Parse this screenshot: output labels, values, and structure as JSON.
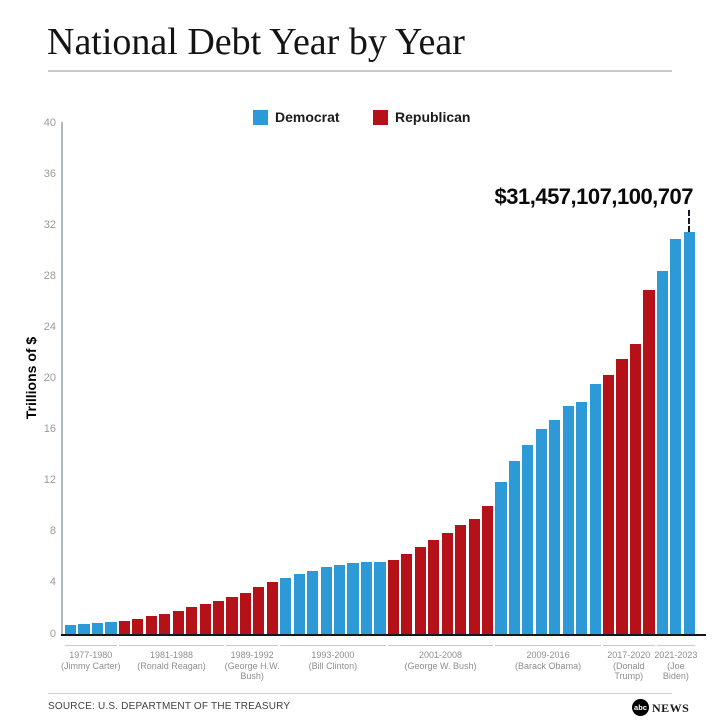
{
  "header": {
    "title": "National Debt Year by Year"
  },
  "legend": {
    "items": [
      {
        "label": "Democrat",
        "color": "#2d9ad7"
      },
      {
        "label": "Republican",
        "color": "#b41218"
      }
    ]
  },
  "annotation": {
    "debt_label": "$31,457,107,100,707"
  },
  "chart_data": {
    "type": "bar",
    "title": "National Debt Year by Year",
    "xlabel": "",
    "ylabel": "Trillions of $",
    "unit": "trillions of US dollars",
    "ylim": [
      0,
      40
    ],
    "yticks": [
      0,
      4,
      8,
      12,
      16,
      20,
      24,
      28,
      32,
      36,
      40
    ],
    "grid": false,
    "legend_position": "top-center",
    "series_colors": {
      "Democrat": "#2d9ad7",
      "Republican": "#b41218"
    },
    "annotation": {
      "text": "$31,457,107,100,707",
      "target_year": 2023
    },
    "groups": [
      {
        "years_label": "1977-1980",
        "president_label": "(Jimmy Carter)",
        "party": "Democrat",
        "years": [
          1977,
          1978,
          1979,
          1980
        ],
        "values": [
          0.7,
          0.77,
          0.83,
          0.91
        ]
      },
      {
        "years_label": "1981-1988",
        "president_label": "(Ronald Reagan)",
        "party": "Republican",
        "years": [
          1981,
          1982,
          1983,
          1984,
          1985,
          1986,
          1987,
          1988
        ],
        "values": [
          1.0,
          1.14,
          1.38,
          1.57,
          1.82,
          2.13,
          2.35,
          2.6
        ]
      },
      {
        "years_label": "1989-1992",
        "president_label": "(George H.W.\nBush)",
        "party": "Republican",
        "years": [
          1989,
          1990,
          1991,
          1992
        ],
        "values": [
          2.86,
          3.23,
          3.67,
          4.07
        ]
      },
      {
        "years_label": "1993-2000",
        "president_label": "(Bill Clinton)",
        "party": "Democrat",
        "years": [
          1993,
          1994,
          1995,
          1996,
          1997,
          1998,
          1999,
          2000
        ],
        "values": [
          4.41,
          4.69,
          4.97,
          5.22,
          5.41,
          5.53,
          5.66,
          5.67
        ]
      },
      {
        "years_label": "2001-2008",
        "president_label": "(George W. Bush)",
        "party": "Republican",
        "years": [
          2001,
          2002,
          2003,
          2004,
          2005,
          2006,
          2007,
          2008
        ],
        "values": [
          5.81,
          6.23,
          6.78,
          7.38,
          7.93,
          8.51,
          9.01,
          10.02
        ]
      },
      {
        "years_label": "2009-2016",
        "president_label": "(Barack Obama)",
        "party": "Democrat",
        "years": [
          2009,
          2010,
          2011,
          2012,
          2013,
          2014,
          2015,
          2016
        ],
        "values": [
          11.91,
          13.56,
          14.79,
          16.07,
          16.74,
          17.82,
          18.15,
          19.57
        ]
      },
      {
        "years_label": "2017-2020",
        "president_label": "(Donald\nTrump)",
        "party": "Republican",
        "years": [
          2017,
          2018,
          2019,
          2020
        ],
        "values": [
          20.24,
          21.52,
          22.72,
          26.95
        ]
      },
      {
        "years_label": "2021-2023",
        "president_label": "(Joe\nBiden)",
        "party": "Democrat",
        "years": [
          2021,
          2022,
          2023
        ],
        "values": [
          28.43,
          30.93,
          31.46
        ]
      }
    ]
  },
  "footer": {
    "source": "SOURCE: U.S. DEPARTMENT OF THE TREASURY",
    "logo": {
      "abc": "abc",
      "news": "NEWS"
    }
  }
}
